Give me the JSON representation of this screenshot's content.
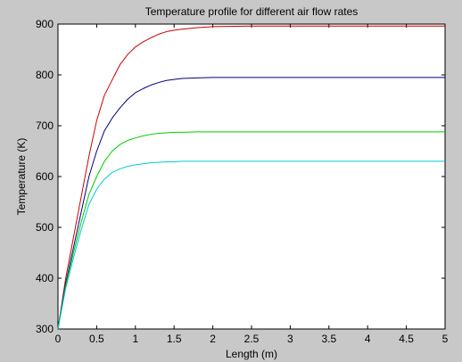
{
  "chart_data": {
    "type": "line",
    "title": "Temperature profile for different air flow rates",
    "xlabel": "Length (m)",
    "ylabel": "Temperature (K)",
    "xlim": [
      0,
      5
    ],
    "ylim": [
      300,
      900
    ],
    "xticks": [
      "0",
      "0.5",
      "1",
      "1.5",
      "2",
      "2.5",
      "3",
      "3.5",
      "4",
      "4.5",
      "5"
    ],
    "yticks": [
      "300",
      "400",
      "500",
      "600",
      "700",
      "800",
      "900"
    ],
    "grid": false,
    "legend": false,
    "series": [
      {
        "color": "#cc0000",
        "x": [
          0,
          0.1,
          0.2,
          0.3,
          0.4,
          0.5,
          0.6,
          0.7,
          0.8,
          0.9,
          1,
          1.1,
          1.2,
          1.3,
          1.4,
          1.5,
          1.6,
          1.8,
          2,
          2.5,
          3,
          3.5,
          4,
          4.5,
          5
        ],
        "y": [
          300,
          400,
          480,
          560,
          640,
          710,
          760,
          790,
          820,
          840,
          855,
          865,
          873,
          880,
          885,
          888,
          890,
          893,
          895,
          896,
          896,
          896,
          896,
          896,
          896
        ]
      },
      {
        "color": "#000080",
        "x": [
          0,
          0.1,
          0.2,
          0.3,
          0.4,
          0.5,
          0.6,
          0.7,
          0.8,
          0.9,
          1,
          1.1,
          1.2,
          1.3,
          1.4,
          1.5,
          1.6,
          1.8,
          2,
          2.5,
          3,
          3.5,
          4,
          4.5,
          5
        ],
        "y": [
          300,
          390,
          460,
          530,
          600,
          650,
          690,
          715,
          735,
          752,
          765,
          773,
          780,
          785,
          789,
          791,
          793,
          794,
          795,
          795,
          795,
          795,
          795,
          795,
          795
        ]
      },
      {
        "color": "#00cc00",
        "x": [
          0,
          0.1,
          0.2,
          0.3,
          0.4,
          0.5,
          0.6,
          0.7,
          0.8,
          0.9,
          1,
          1.1,
          1.2,
          1.3,
          1.4,
          1.5,
          1.6,
          1.8,
          2,
          2.5,
          3,
          3.5,
          4,
          4.5,
          5
        ],
        "y": [
          300,
          385,
          450,
          510,
          565,
          600,
          630,
          650,
          663,
          671,
          676,
          680,
          683,
          685,
          686,
          687,
          687,
          688,
          688,
          688,
          688,
          688,
          688,
          688,
          688
        ]
      },
      {
        "color": "#00cccc",
        "x": [
          0,
          0.1,
          0.2,
          0.3,
          0.4,
          0.5,
          0.6,
          0.7,
          0.8,
          0.9,
          1,
          1.1,
          1.2,
          1.3,
          1.4,
          1.5,
          1.6,
          1.8,
          2,
          2.5,
          3,
          3.5,
          4,
          4.5,
          5
        ],
        "y": [
          300,
          380,
          440,
          495,
          545,
          575,
          595,
          608,
          615,
          620,
          623,
          625,
          627,
          628,
          629,
          629,
          630,
          630,
          630,
          630,
          630,
          630,
          630,
          630,
          630
        ]
      }
    ]
  }
}
